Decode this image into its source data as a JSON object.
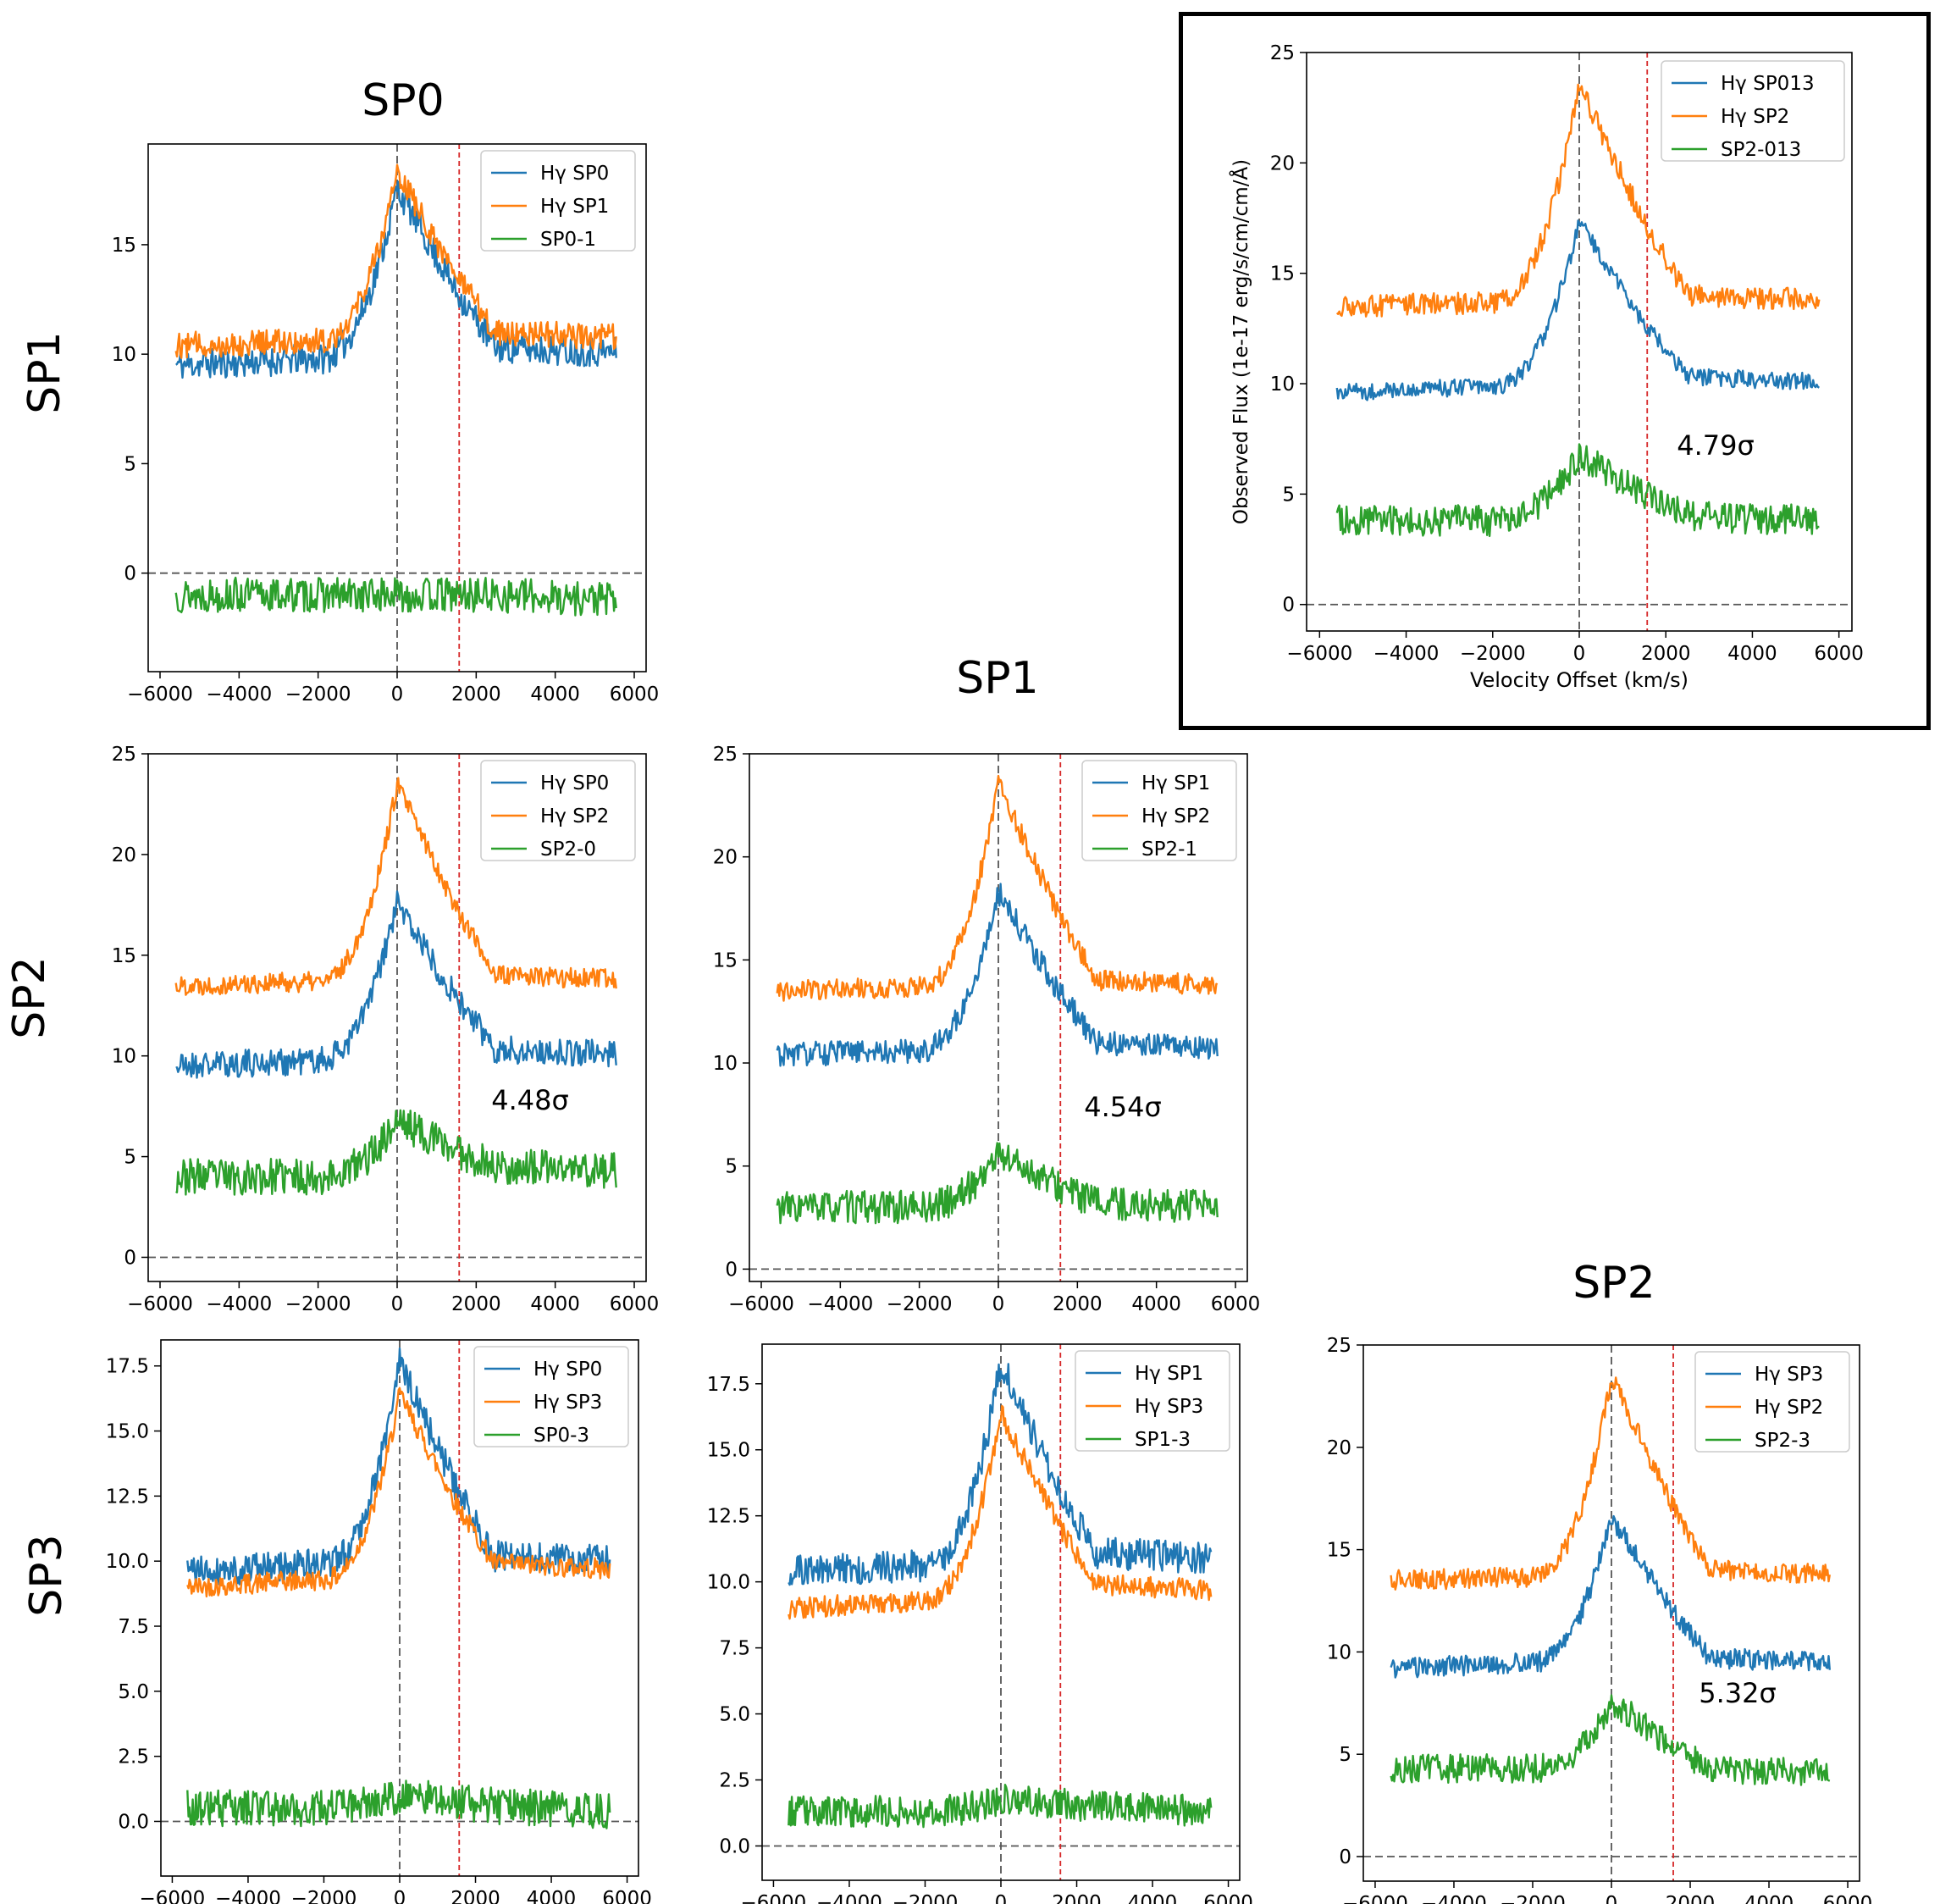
{
  "figure": {
    "column_titles": [
      "SP0",
      "SP1",
      "SP2"
    ],
    "row_titles": [
      "SP1",
      "SP2",
      "SP3"
    ],
    "colors": {
      "blue": "#1f77b4",
      "orange": "#ff7f0e",
      "green": "#2ca02c",
      "zero_line": "#555555",
      "ref_line": "#d62728"
    },
    "ref_velocity": 1570
  },
  "chart_data": [
    {
      "id": "sp0-sp1",
      "type": "line",
      "xlim": [
        -6300,
        6300
      ],
      "ylim": [
        -4.5,
        19.6
      ],
      "xticks": [
        -6000,
        -4000,
        -2000,
        0,
        2000,
        4000,
        6000
      ],
      "yticks": [
        0,
        5,
        10,
        15
      ],
      "legend": [
        "Hγ SP0",
        "Hγ SP1",
        "SP0-1"
      ],
      "series": [
        {
          "name": "Hγ SP0",
          "color": "blue",
          "base": 9.5,
          "slope": 0.08,
          "red": 10.3,
          "peak": 17.6,
          "noise": 0.7,
          "seed": 11
        },
        {
          "name": "Hγ SP1",
          "color": "orange",
          "base": 10.4,
          "slope": 0.06,
          "red": 11.0,
          "peak": 18.3,
          "noise": 0.6,
          "seed": 12
        },
        {
          "name": "SP0-1",
          "color": "green",
          "base": -1.0,
          "slope": 0.0,
          "red": -1.0,
          "peak": -1.0,
          "noise": 0.8,
          "seed": 13
        }
      ]
    },
    {
      "id": "sp0-sp2",
      "type": "line",
      "xlim": [
        -6300,
        6300
      ],
      "ylim": [
        -1.2,
        25.0
      ],
      "xticks": [
        -6000,
        -4000,
        -2000,
        0,
        2000,
        4000,
        6000
      ],
      "yticks": [
        0,
        5,
        10,
        15,
        20,
        25
      ],
      "legend": [
        "Hγ SP0",
        "Hγ SP2",
        "SP2-0"
      ],
      "annotation": "4.48σ",
      "series": [
        {
          "name": "Hγ SP0",
          "color": "blue",
          "base": 9.5,
          "slope": 0.08,
          "red": 10.3,
          "peak": 17.6,
          "noise": 0.7,
          "seed": 21
        },
        {
          "name": "Hγ SP2",
          "color": "orange",
          "base": 13.5,
          "slope": 0.05,
          "red": 14.0,
          "peak": 23.5,
          "noise": 0.5,
          "seed": 22
        },
        {
          "name": "SP2-0",
          "color": "green",
          "base": 4.0,
          "slope": 0.0,
          "red": 4.5,
          "peak": 6.8,
          "noise": 0.9,
          "seed": 23
        }
      ]
    },
    {
      "id": "sp1-sp2",
      "type": "line",
      "xlim": [
        -6300,
        6300
      ],
      "ylim": [
        -0.6,
        25.0
      ],
      "xticks": [
        -6000,
        -4000,
        -2000,
        0,
        2000,
        4000,
        6000
      ],
      "yticks": [
        0,
        5,
        10,
        15,
        20,
        25
      ],
      "legend": [
        "Hγ SP1",
        "Hγ SP2",
        "SP2-1"
      ],
      "annotation": "4.54σ",
      "series": [
        {
          "name": "Hγ SP1",
          "color": "blue",
          "base": 10.4,
          "slope": 0.06,
          "red": 11.0,
          "peak": 18.3,
          "noise": 0.6,
          "seed": 31
        },
        {
          "name": "Hγ SP2",
          "color": "orange",
          "base": 13.5,
          "slope": 0.05,
          "red": 14.0,
          "peak": 23.5,
          "noise": 0.5,
          "seed": 32
        },
        {
          "name": "SP2-1",
          "color": "green",
          "base": 3.0,
          "slope": 0.0,
          "red": 3.2,
          "peak": 5.6,
          "noise": 0.8,
          "seed": 33
        }
      ]
    },
    {
      "id": "sp0-sp3",
      "type": "line",
      "xlim": [
        -6300,
        6300
      ],
      "ylim": [
        -2.1,
        18.5
      ],
      "xticks": [
        -6000,
        -4000,
        -2000,
        0,
        2000,
        4000,
        6000
      ],
      "yticks": [
        0.0,
        2.5,
        5.0,
        7.5,
        10.0,
        12.5,
        15.0,
        17.5
      ],
      "legend": [
        "Hγ SP0",
        "Hγ SP3",
        "SP0-3"
      ],
      "series": [
        {
          "name": "Hγ SP0",
          "color": "blue",
          "base": 9.6,
          "slope": 0.08,
          "red": 10.2,
          "peak": 17.6,
          "noise": 0.6,
          "seed": 41
        },
        {
          "name": "Hγ SP3",
          "color": "orange",
          "base": 9.0,
          "slope": 0.08,
          "red": 9.9,
          "peak": 16.4,
          "noise": 0.4,
          "seed": 42
        },
        {
          "name": "SP0-3",
          "color": "green",
          "base": 0.5,
          "slope": 0.0,
          "red": 0.6,
          "peak": 1.0,
          "noise": 0.7,
          "seed": 43
        }
      ]
    },
    {
      "id": "sp1-sp3",
      "type": "line",
      "xlim": [
        -6300,
        6300
      ],
      "ylim": [
        -1.3,
        19.0
      ],
      "xticks": [
        -6000,
        -4000,
        -2000,
        0,
        2000,
        4000,
        6000
      ],
      "yticks": [
        0.0,
        2.5,
        5.0,
        7.5,
        10.0,
        12.5,
        15.0,
        17.5
      ],
      "legend": [
        "Hγ SP1",
        "Hγ SP3",
        "SP1-3"
      ],
      "series": [
        {
          "name": "Hγ SP1",
          "color": "blue",
          "base": 10.4,
          "slope": 0.06,
          "red": 11.1,
          "peak": 18.3,
          "noise": 0.6,
          "seed": 51
        },
        {
          "name": "Hγ SP3",
          "color": "orange",
          "base": 9.0,
          "slope": 0.08,
          "red": 9.9,
          "peak": 16.4,
          "noise": 0.4,
          "seed": 52
        },
        {
          "name": "SP1-3",
          "color": "green",
          "base": 1.3,
          "slope": 0.0,
          "red": 1.5,
          "peak": 1.8,
          "noise": 0.6,
          "seed": 53
        }
      ]
    },
    {
      "id": "sp2-sp3",
      "type": "line",
      "xlim": [
        -6300,
        6300
      ],
      "ylim": [
        -1.2,
        25.0
      ],
      "xticks": [
        -6000,
        -4000,
        -2000,
        0,
        2000,
        4000,
        6000
      ],
      "yticks": [
        0,
        5,
        10,
        15,
        20,
        25
      ],
      "legend": [
        "Hγ SP3",
        "Hγ SP2",
        "SP2-3"
      ],
      "annotation": "5.32σ",
      "series": [
        {
          "name": "Hγ SP3",
          "color": "blue",
          "base": 9.2,
          "slope": 0.08,
          "red": 9.7,
          "peak": 16.6,
          "noise": 0.5,
          "seed": 61
        },
        {
          "name": "Hγ SP2",
          "color": "orange",
          "base": 13.5,
          "slope": 0.05,
          "red": 14.0,
          "peak": 23.5,
          "noise": 0.5,
          "seed": 62
        },
        {
          "name": "SP2-3",
          "color": "green",
          "base": 4.3,
          "slope": 0.0,
          "red": 4.3,
          "peak": 7.6,
          "noise": 0.7,
          "seed": 63
        }
      ]
    },
    {
      "id": "inset-sp013-sp2",
      "type": "line",
      "xlim": [
        -6300,
        6300
      ],
      "ylim": [
        -1.2,
        25.0
      ],
      "xticks": [
        -6000,
        -4000,
        -2000,
        0,
        2000,
        4000,
        6000
      ],
      "yticks": [
        0,
        5,
        10,
        15,
        20,
        25
      ],
      "xlabel": "Velocity Offset (km/s)",
      "ylabel": "Observed Flux (1e-17 erg/s/cm/cm/Å)",
      "legend": [
        "Hγ SP013",
        "Hγ SP2",
        "SP2-013"
      ],
      "annotation": "4.79σ",
      "series": [
        {
          "name": "Hγ SP013",
          "color": "blue",
          "base": 9.6,
          "slope": 0.08,
          "red": 10.3,
          "peak": 17.3,
          "noise": 0.4,
          "seed": 71
        },
        {
          "name": "Hγ SP2",
          "color": "orange",
          "base": 13.5,
          "slope": 0.05,
          "red": 14.0,
          "peak": 23.5,
          "noise": 0.5,
          "seed": 72
        },
        {
          "name": "SP2-013",
          "color": "green",
          "base": 3.8,
          "slope": 0.0,
          "red": 4.0,
          "peak": 6.8,
          "noise": 0.7,
          "seed": 73
        }
      ]
    }
  ]
}
